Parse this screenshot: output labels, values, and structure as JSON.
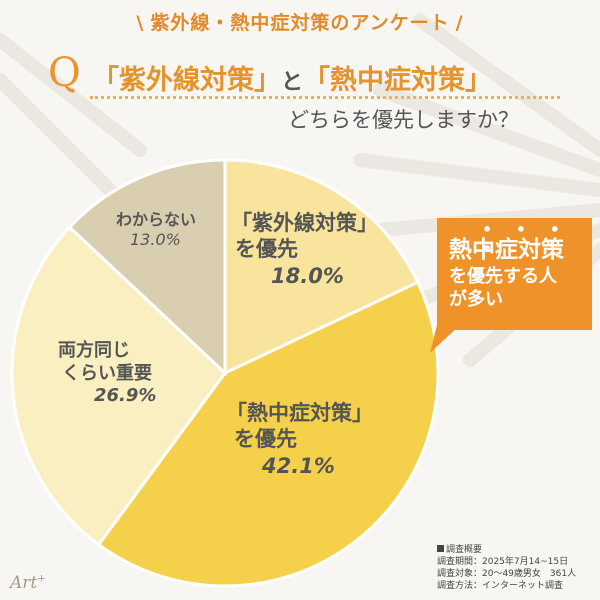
{
  "header": {
    "title": "紫外線・熱中症対策のアンケート",
    "slash_left": "\\",
    "slash_right": "/"
  },
  "question": {
    "letter": "Q",
    "line1_a": "「紫外線対策」",
    "line1_and": "と",
    "line1_b": "「熱中症対策」",
    "line2": "どちらを優先しますか？"
  },
  "chart_data": {
    "type": "pie",
    "slices": [
      {
        "label_line1": "「紫外線対策」",
        "label_line2": "を優先",
        "value": 18.0,
        "value_label": "18.0%",
        "color": "#f8e49c"
      },
      {
        "label_line1": "「熱中症対策」",
        "label_line2": "を優先",
        "value": 42.1,
        "value_label": "42.1%",
        "color": "#f5d14b"
      },
      {
        "label_line1": "両方同じ",
        "label_line2": "くらい重要",
        "value": 26.9,
        "value_label": "26.9%",
        "color": "#f9efc0"
      },
      {
        "label_line1": "わからない",
        "label_line2": "",
        "value": 13.0,
        "value_label": "13.0%",
        "color": "#d9cfb0"
      }
    ],
    "start_angle_deg": 0,
    "direction": "clockwise"
  },
  "callout": {
    "dots": "• • • •",
    "line1": "熱中症対策",
    "line2": "を優先する人",
    "line3": "が多い",
    "color": "#f0922a"
  },
  "logo": {
    "text": "Art",
    "sup": "+"
  },
  "survey": {
    "title": "調査概要",
    "period": "調査期間：2025年7月14~15日",
    "target": "調査対象：20～49歳男女　361人",
    "method": "調査方法：インターネット調査"
  }
}
